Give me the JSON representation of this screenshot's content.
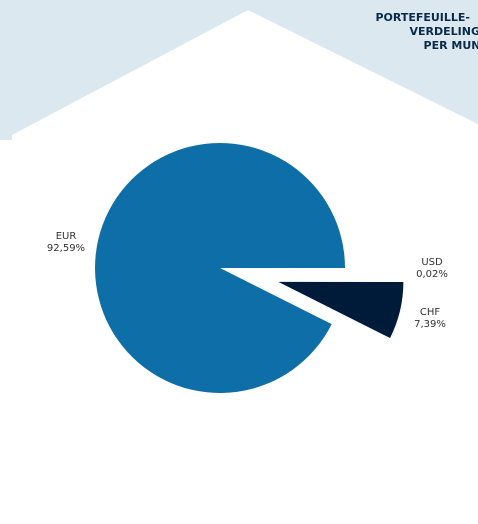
{
  "chart_data": {
    "type": "pie",
    "title_lines": [
      "PORTEFEUILLE-",
      "VERDELING",
      "PER MUNT"
    ],
    "categories": [
      "USD",
      "CHF",
      "EUR"
    ],
    "values": [
      0.02,
      7.39,
      92.59
    ],
    "value_labels": [
      "0,02%",
      "7,39%",
      "92,59%"
    ],
    "colors": [
      "#f2f6f9",
      "#001a3a",
      "#0e6fa8"
    ],
    "exploded": [
      "CHF"
    ]
  }
}
